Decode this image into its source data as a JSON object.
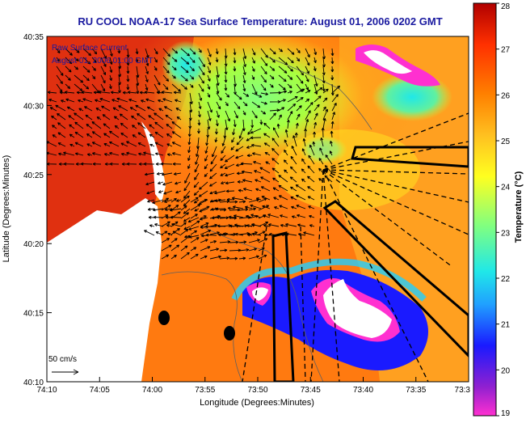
{
  "title": "RU COOL  NOAA-17  Sea Surface Temperature:  August 01, 2006 0202 GMT",
  "overlay": {
    "line1": "Raw Surface Current",
    "line2": "August 01, 2006 01:00 GMT"
  },
  "scale_label": "50 cm/s",
  "x_axis": {
    "label": "Longitude (Degrees:Minutes)",
    "ticks": [
      "74:10",
      "74:05",
      "74:00",
      "73:55",
      "73:50",
      "73:45",
      "73:40",
      "73:35",
      "73:3"
    ]
  },
  "y_axis": {
    "label": "Latitude (Degrees:Minutes)",
    "ticks": [
      "40:35",
      "40:30",
      "40:25",
      "40:20",
      "40:15",
      "40:10"
    ]
  },
  "colorbar": {
    "label": "Temperature (°C)",
    "ticks": [
      "28",
      "27",
      "26",
      "25",
      "24",
      "23",
      "22",
      "21",
      "20",
      "19"
    ],
    "stops": [
      "#ff30d0",
      "#9020d0",
      "#1a1aff",
      "#20a0ff",
      "#20e8e8",
      "#80ff80",
      "#ffff20",
      "#ffc020",
      "#ff8000",
      "#ff3000",
      "#b00000"
    ]
  },
  "colors": {
    "title": "#1a1aa0",
    "ocean_warm": "#ff7a10",
    "land": "#ffffff",
    "outline": "#000000"
  }
}
